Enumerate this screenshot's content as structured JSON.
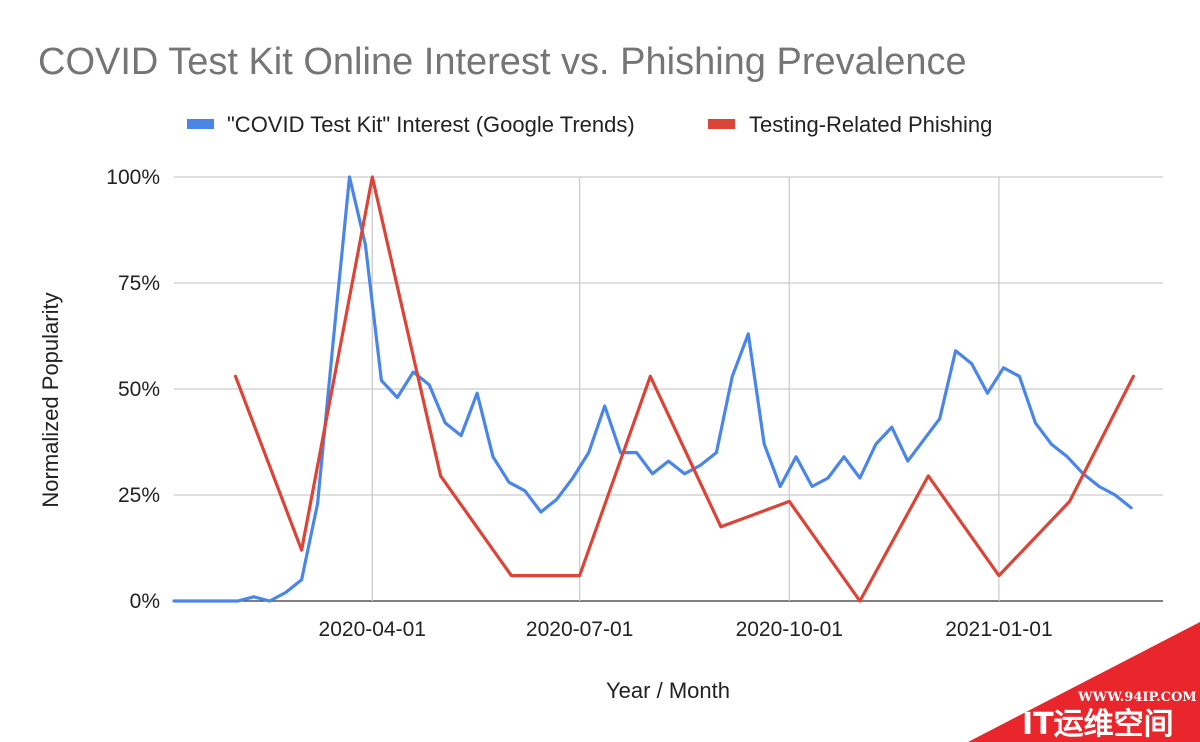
{
  "watermark": {
    "url": "WWW.94IP.COM",
    "name": "IT运维空间",
    "color": "#e8262c"
  },
  "chart_data": {
    "type": "line",
    "title": "COVID Test Kit Online Interest vs. Phishing Prevalence",
    "xlabel": "Year / Month",
    "ylabel": "Normalized Popularity",
    "x_ticks": [
      "2020-04-01",
      "2020-07-01",
      "2020-10-01",
      "2021-01-01"
    ],
    "y_ticks": [
      "0%",
      "25%",
      "50%",
      "75%",
      "100%"
    ],
    "ylim": [
      0,
      100
    ],
    "xlim": [
      "2020-01-05",
      "2021-03-14"
    ],
    "grid": true,
    "legend_position": "top",
    "series": [
      {
        "name": "\"COVID Test Kit\" Interest (Google Trends)",
        "color": "#4a86e8",
        "points": [
          [
            "2020-01-05",
            0
          ],
          [
            "2020-01-12",
            0
          ],
          [
            "2020-01-19",
            0
          ],
          [
            "2020-01-26",
            0
          ],
          [
            "2020-02-02",
            0
          ],
          [
            "2020-02-09",
            1
          ],
          [
            "2020-02-16",
            0
          ],
          [
            "2020-02-23",
            2
          ],
          [
            "2020-03-01",
            5
          ],
          [
            "2020-03-08",
            23
          ],
          [
            "2020-03-15",
            62
          ],
          [
            "2020-03-22",
            100
          ],
          [
            "2020-03-29",
            84
          ],
          [
            "2020-04-05",
            52
          ],
          [
            "2020-04-12",
            48
          ],
          [
            "2020-04-19",
            54
          ],
          [
            "2020-04-26",
            51
          ],
          [
            "2020-05-03",
            42
          ],
          [
            "2020-05-10",
            39
          ],
          [
            "2020-05-17",
            49
          ],
          [
            "2020-05-24",
            34
          ],
          [
            "2020-05-31",
            28
          ],
          [
            "2020-06-07",
            26
          ],
          [
            "2020-06-14",
            21
          ],
          [
            "2020-06-21",
            24
          ],
          [
            "2020-06-28",
            29
          ],
          [
            "2020-07-05",
            35
          ],
          [
            "2020-07-12",
            46
          ],
          [
            "2020-07-19",
            35
          ],
          [
            "2020-07-26",
            35
          ],
          [
            "2020-08-02",
            30
          ],
          [
            "2020-08-09",
            33
          ],
          [
            "2020-08-16",
            30
          ],
          [
            "2020-08-23",
            32
          ],
          [
            "2020-08-30",
            35
          ],
          [
            "2020-09-06",
            53
          ],
          [
            "2020-09-13",
            63
          ],
          [
            "2020-09-20",
            37
          ],
          [
            "2020-09-27",
            27
          ],
          [
            "2020-10-04",
            34
          ],
          [
            "2020-10-11",
            27
          ],
          [
            "2020-10-18",
            29
          ],
          [
            "2020-10-25",
            34
          ],
          [
            "2020-11-01",
            29
          ],
          [
            "2020-11-08",
            37
          ],
          [
            "2020-11-15",
            41
          ],
          [
            "2020-11-22",
            33
          ],
          [
            "2020-11-29",
            38
          ],
          [
            "2020-12-06",
            43
          ],
          [
            "2020-12-13",
            59
          ],
          [
            "2020-12-20",
            56
          ],
          [
            "2020-12-27",
            49
          ],
          [
            "2021-01-03",
            55
          ],
          [
            "2021-01-10",
            53
          ],
          [
            "2021-01-17",
            42
          ],
          [
            "2021-01-24",
            37
          ],
          [
            "2021-01-31",
            34
          ],
          [
            "2021-02-07",
            30
          ],
          [
            "2021-02-14",
            27
          ],
          [
            "2021-02-21",
            25
          ],
          [
            "2021-02-28",
            22
          ]
        ]
      },
      {
        "name": "Testing-Related Phishing",
        "color": "#db4437",
        "points": [
          [
            "2020-02-01",
            53
          ],
          [
            "2020-03-01",
            12
          ],
          [
            "2020-04-01",
            100
          ],
          [
            "2020-05-01",
            29.5
          ],
          [
            "2020-06-01",
            6
          ],
          [
            "2020-07-01",
            6
          ],
          [
            "2020-08-01",
            53
          ],
          [
            "2020-09-01",
            17.5
          ],
          [
            "2020-10-01",
            23.5
          ],
          [
            "2020-11-01",
            0
          ],
          [
            "2020-12-01",
            29.5
          ],
          [
            "2021-01-01",
            6
          ],
          [
            "2021-02-01",
            23.5
          ],
          [
            "2021-03-01",
            53
          ]
        ]
      }
    ]
  }
}
